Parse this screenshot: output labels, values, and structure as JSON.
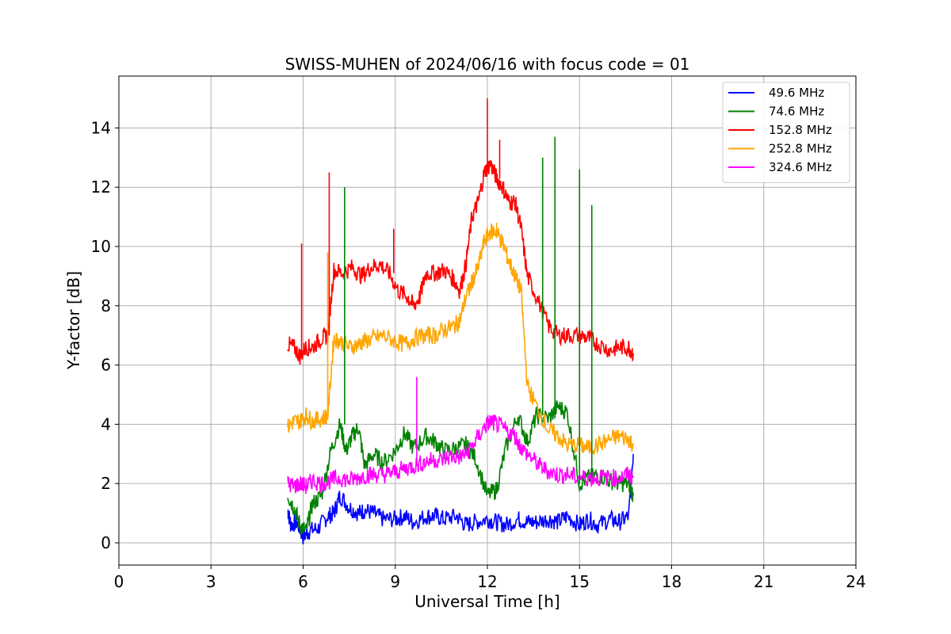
{
  "chart_data": {
    "type": "line",
    "title": "SWISS-MUHEN of 2024/06/16 with focus code = 01",
    "xlabel": "Universal Time [h]",
    "ylabel": "Y-factor [dB]",
    "xlim": [
      0,
      24
    ],
    "ylim": [
      -0.75,
      15.75
    ],
    "xticks": [
      0,
      3,
      6,
      9,
      12,
      15,
      18,
      21,
      24
    ],
    "yticks": [
      0,
      2,
      4,
      6,
      8,
      10,
      12,
      14
    ],
    "grid": true,
    "legend_position": "top-right",
    "series": [
      {
        "name": "49.6 MHz",
        "color": "#0000ff",
        "x": [
          5.5,
          5.6,
          5.8,
          6.0,
          6.2,
          6.5,
          6.8,
          7.0,
          7.2,
          7.5,
          7.8,
          8.0,
          8.3,
          8.6,
          9.0,
          9.3,
          9.6,
          10.0,
          10.3,
          10.6,
          11.0,
          11.3,
          11.6,
          12.0,
          12.3,
          12.6,
          13.0,
          13.3,
          13.6,
          14.0,
          14.3,
          14.6,
          15.0,
          15.3,
          15.6,
          16.0,
          16.3,
          16.6,
          16.75
        ],
        "y": [
          1.1,
          0.6,
          0.7,
          0.2,
          0.4,
          0.5,
          0.9,
          1.0,
          1.6,
          1.2,
          1.0,
          1.1,
          1.0,
          0.8,
          0.8,
          0.9,
          0.7,
          0.9,
          0.9,
          0.8,
          0.9,
          0.6,
          0.7,
          0.8,
          0.7,
          0.6,
          0.8,
          0.7,
          0.7,
          0.8,
          0.7,
          0.9,
          0.6,
          0.8,
          0.6,
          0.8,
          0.7,
          0.9,
          3.0
        ]
      },
      {
        "name": "74.6 MHz",
        "color": "#008000",
        "x": [
          5.5,
          5.7,
          5.9,
          6.1,
          6.3,
          6.6,
          6.9,
          7.2,
          7.4,
          7.6,
          7.8,
          8.0,
          8.3,
          8.6,
          9.0,
          9.3,
          9.6,
          10.0,
          10.3,
          10.6,
          11.0,
          11.3,
          11.6,
          12.0,
          12.3,
          12.6,
          13.0,
          13.3,
          13.6,
          14.0,
          14.3,
          14.6,
          15.0,
          15.3,
          15.6,
          16.0,
          16.3,
          16.6,
          16.75
        ],
        "y": [
          1.6,
          1.2,
          0.6,
          0.4,
          1.3,
          1.6,
          3.1,
          4.0,
          3.1,
          3.6,
          3.9,
          2.6,
          3.0,
          2.7,
          3.1,
          3.7,
          3.2,
          3.6,
          3.4,
          3.1,
          3.2,
          3.3,
          2.9,
          1.6,
          1.8,
          3.2,
          4.3,
          3.4,
          4.3,
          4.2,
          4.6,
          4.4,
          2.0,
          2.2,
          2.3,
          2.1,
          2.0,
          2.0,
          1.6
        ]
      },
      {
        "name": "152.8 MHz",
        "color": "#ff0000",
        "x": [
          5.5,
          5.7,
          5.9,
          6.1,
          6.3,
          6.6,
          6.8,
          7.0,
          7.3,
          7.6,
          7.9,
          8.2,
          8.5,
          8.8,
          9.1,
          9.4,
          9.6,
          9.8,
          10.0,
          10.3,
          10.6,
          10.9,
          11.1,
          11.3,
          11.5,
          11.7,
          11.9,
          12.1,
          12.3,
          12.5,
          12.7,
          12.9,
          13.1,
          13.3,
          13.6,
          14.0,
          14.3,
          14.6,
          15.0,
          15.3,
          15.6,
          16.0,
          16.3,
          16.6,
          16.75
        ],
        "y": [
          6.7,
          6.6,
          6.3,
          6.6,
          6.6,
          6.9,
          7.0,
          9.2,
          9.1,
          9.3,
          9.0,
          9.3,
          9.4,
          9.1,
          8.5,
          8.3,
          8.0,
          8.3,
          9.1,
          9.1,
          9.2,
          8.9,
          8.5,
          9.4,
          11.0,
          11.5,
          12.5,
          12.8,
          12.3,
          12.0,
          11.5,
          11.5,
          10.6,
          9.0,
          8.3,
          7.3,
          7.0,
          7.0,
          7.0,
          6.9,
          6.7,
          6.5,
          6.6,
          6.6,
          6.4
        ]
      },
      {
        "name": "252.8 MHz",
        "color": "#ffa500",
        "x": [
          5.5,
          5.7,
          5.9,
          6.1,
          6.3,
          6.6,
          6.8,
          7.0,
          7.2,
          7.5,
          7.8,
          8.0,
          8.3,
          8.6,
          9.0,
          9.3,
          9.6,
          10.0,
          10.3,
          10.6,
          10.9,
          11.1,
          11.3,
          11.5,
          11.7,
          11.9,
          12.1,
          12.3,
          12.5,
          12.7,
          12.9,
          13.1,
          13.3,
          13.6,
          14.0,
          14.3,
          14.6,
          15.0,
          15.3,
          15.6,
          16.0,
          16.3,
          16.6,
          16.75
        ],
        "y": [
          3.9,
          4.1,
          4.1,
          4.3,
          4.1,
          4.2,
          4.3,
          6.9,
          6.8,
          6.6,
          6.7,
          6.8,
          6.9,
          7.0,
          6.8,
          6.7,
          6.9,
          7.0,
          7.0,
          7.2,
          7.3,
          7.5,
          8.3,
          8.8,
          9.3,
          10.2,
          10.5,
          10.5,
          10.1,
          9.5,
          9.0,
          8.5,
          5.3,
          4.6,
          3.8,
          3.6,
          3.3,
          3.3,
          3.2,
          3.3,
          3.5,
          3.6,
          3.5,
          3.3
        ]
      },
      {
        "name": "324.6 MHz",
        "color": "#ff00ff",
        "x": [
          5.5,
          5.7,
          5.9,
          6.1,
          6.3,
          6.6,
          6.9,
          7.2,
          7.5,
          7.8,
          8.1,
          8.4,
          8.7,
          9.0,
          9.3,
          9.6,
          9.9,
          10.2,
          10.5,
          10.8,
          11.1,
          11.3,
          11.6,
          11.9,
          12.1,
          12.3,
          12.6,
          12.9,
          13.1,
          13.4,
          13.7,
          14.0,
          14.3,
          14.6,
          15.0,
          15.3,
          15.6,
          16.0,
          16.3,
          16.6,
          16.75
        ],
        "y": [
          2.0,
          1.9,
          2.0,
          1.9,
          2.1,
          2.0,
          2.1,
          2.2,
          2.1,
          2.2,
          2.3,
          2.3,
          2.3,
          2.4,
          2.5,
          2.6,
          2.7,
          2.8,
          2.8,
          2.9,
          2.9,
          3.0,
          3.4,
          3.9,
          4.1,
          4.0,
          3.8,
          3.6,
          3.2,
          2.9,
          2.6,
          2.4,
          2.3,
          2.3,
          2.2,
          2.2,
          2.2,
          2.2,
          2.2,
          2.3,
          2.2
        ]
      }
    ],
    "spikes": [
      {
        "series": 2,
        "x": 5.95,
        "y": 10.1
      },
      {
        "series": 2,
        "x": 6.85,
        "y": 12.5
      },
      {
        "series": 2,
        "x": 8.95,
        "y": 10.6
      },
      {
        "series": 2,
        "x": 12.0,
        "y": 15.0
      },
      {
        "series": 2,
        "x": 12.4,
        "y": 13.6
      },
      {
        "series": 3,
        "x": 6.8,
        "y": 9.8
      },
      {
        "series": 3,
        "x": 12.3,
        "y": 10.8
      },
      {
        "series": 1,
        "x": 7.35,
        "y": 12.0
      },
      {
        "series": 1,
        "x": 14.2,
        "y": 13.7
      },
      {
        "series": 1,
        "x": 15.0,
        "y": 12.6
      },
      {
        "series": 1,
        "x": 13.8,
        "y": 13.0
      },
      {
        "series": 1,
        "x": 15.4,
        "y": 11.4
      },
      {
        "series": 4,
        "x": 9.7,
        "y": 5.6
      }
    ]
  }
}
